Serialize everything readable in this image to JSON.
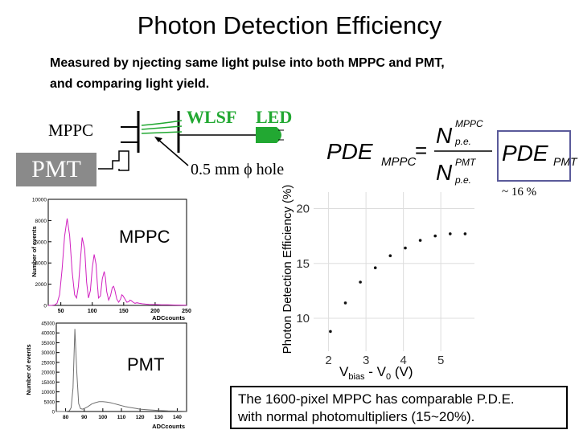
{
  "slide": {
    "title": "Photon Detection Efficiency",
    "intro_line1": "Measured by njecting same light pulse into both MPPC and PMT,",
    "intro_line2": "and comparing light yield.",
    "caption_line1": "The 1600-pixel MPPC has comparable P.D.E.",
    "caption_line2": "with normal photomultipliers (15~20%)."
  },
  "setup": {
    "mppc_label": "MPPC",
    "pmt_label": "PMT",
    "wlsf_label": "WLSF",
    "led_label": "LED",
    "hole_label": "0.5 mm ϕ hole",
    "colors": {
      "fiber": "#22a832",
      "pmt_box": "#8a8a8a"
    }
  },
  "formula": {
    "lhs_main": "PDE",
    "lhs_sub": "MPPC",
    "equals": "=",
    "numerator_main": "N",
    "numerator_sup": "MPPC",
    "numerator_sub": "p.e.",
    "denominator_main": "N",
    "denominator_sup": "PMT",
    "denominator_sub": "p.e.",
    "pmt_term_main": "PDE",
    "pmt_term_sub": "PMT",
    "pmt_value": "~ 16 %"
  },
  "chart_data": [
    {
      "type": "line",
      "title": "",
      "inset_label": "MPPC",
      "xlabel": "ADCcounts",
      "ylabel": "Number of events",
      "xlim": [
        30,
        250
      ],
      "ylim": [
        0,
        10000
      ],
      "x_ticks": [
        "50",
        "100",
        "150",
        "200",
        "250"
      ],
      "y_ticks": [
        "0",
        "2000",
        "4000",
        "6000",
        "8000",
        "10000"
      ],
      "x": [
        30,
        36,
        40,
        44,
        48,
        52,
        56,
        60,
        64,
        68,
        72,
        75,
        78,
        81,
        84,
        88,
        91,
        94,
        97,
        100,
        103,
        106,
        108,
        110,
        113,
        116,
        119,
        121,
        123,
        126,
        129,
        132,
        134,
        136,
        139,
        142,
        145,
        147,
        149,
        152,
        155,
        158,
        160,
        162,
        165,
        168,
        171,
        175,
        180,
        185,
        190,
        200,
        210,
        220,
        230,
        240,
        250
      ],
      "series": [
        {
          "name": "MPPC",
          "values": [
            0,
            10,
            40,
            200,
            1000,
            3400,
            6500,
            8200,
            6600,
            3200,
            1000,
            700,
            1800,
            4200,
            6400,
            5300,
            2200,
            700,
            1400,
            3500,
            4800,
            3900,
            2100,
            700,
            900,
            2500,
            3200,
            2600,
            1300,
            500,
            900,
            1700,
            1800,
            1400,
            600,
            300,
            600,
            1000,
            900,
            600,
            300,
            350,
            500,
            450,
            300,
            200,
            250,
            200,
            150,
            120,
            100,
            80,
            60,
            50,
            40,
            30,
            20
          ]
        }
      ]
    },
    {
      "type": "line",
      "title": "",
      "inset_label": "PMT",
      "xlabel": "ADCcounts",
      "ylabel": "Number of events",
      "xlim": [
        75,
        145
      ],
      "ylim": [
        0,
        45000
      ],
      "x_ticks": [
        "80",
        "90",
        "100",
        "110",
        "120",
        "130",
        "140"
      ],
      "y_ticks": [
        "0",
        "5000",
        "10000",
        "15000",
        "20000",
        "25000",
        "30000",
        "35000",
        "40000",
        "45000"
      ],
      "x": [
        75,
        80,
        82,
        83,
        84,
        85,
        86,
        87,
        88,
        89,
        90,
        92,
        94,
        96,
        98,
        100,
        102,
        104,
        106,
        108,
        110,
        112,
        115,
        118,
        120,
        125,
        130,
        135,
        140,
        145
      ],
      "series": [
        {
          "name": "PMT",
          "values": [
            0,
            0,
            300,
            2000,
            12000,
            42000,
            20000,
            4000,
            1500,
            1200,
            1500,
            2500,
            3800,
            4500,
            5000,
            5000,
            4800,
            4500,
            4000,
            3500,
            3000,
            2500,
            2000,
            1500,
            1200,
            800,
            500,
            300,
            200,
            100
          ]
        }
      ]
    },
    {
      "type": "scatter",
      "title": "",
      "xlabel": "V_bias - V_0 (V)",
      "xlabel_parts": {
        "v": "V",
        "bias": "bias",
        "rest": " - V",
        "zero": "0",
        "unit": " (V)"
      },
      "ylabel": "Photon Detection Efficiency (%)",
      "xlim": [
        1.6,
        5.9
      ],
      "ylim": [
        7,
        21.5
      ],
      "x_ticks": [
        "2",
        "3",
        "4",
        "5"
      ],
      "y_ticks": [
        "10",
        "15",
        "20"
      ],
      "x": [
        2.05,
        2.45,
        2.85,
        3.25,
        3.65,
        4.05,
        4.45,
        4.85,
        5.25,
        5.65
      ],
      "series": [
        {
          "name": "PDE",
          "values": [
            8.8,
            11.4,
            13.3,
            14.6,
            15.7,
            16.4,
            17.1,
            17.5,
            17.7,
            17.7
          ]
        }
      ]
    }
  ]
}
